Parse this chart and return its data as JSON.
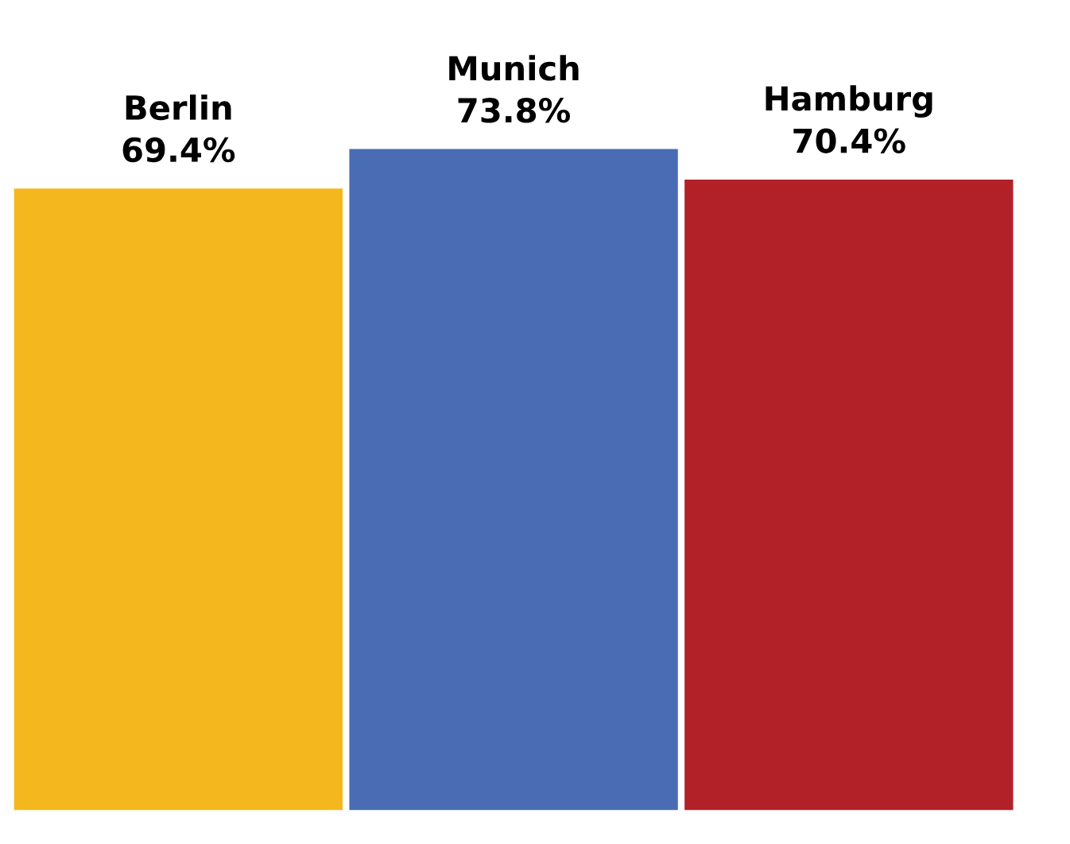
{
  "chart_data": {
    "type": "bar",
    "categories": [
      "Berlin",
      "Munich",
      "Hamburg"
    ],
    "values": [
      69.4,
      73.8,
      70.4
    ],
    "value_labels": [
      "69.4%",
      "73.8%",
      "70.4%"
    ],
    "colors": [
      "#f4b81e",
      "#4a6cb4",
      "#b22028"
    ],
    "legend": false
  }
}
